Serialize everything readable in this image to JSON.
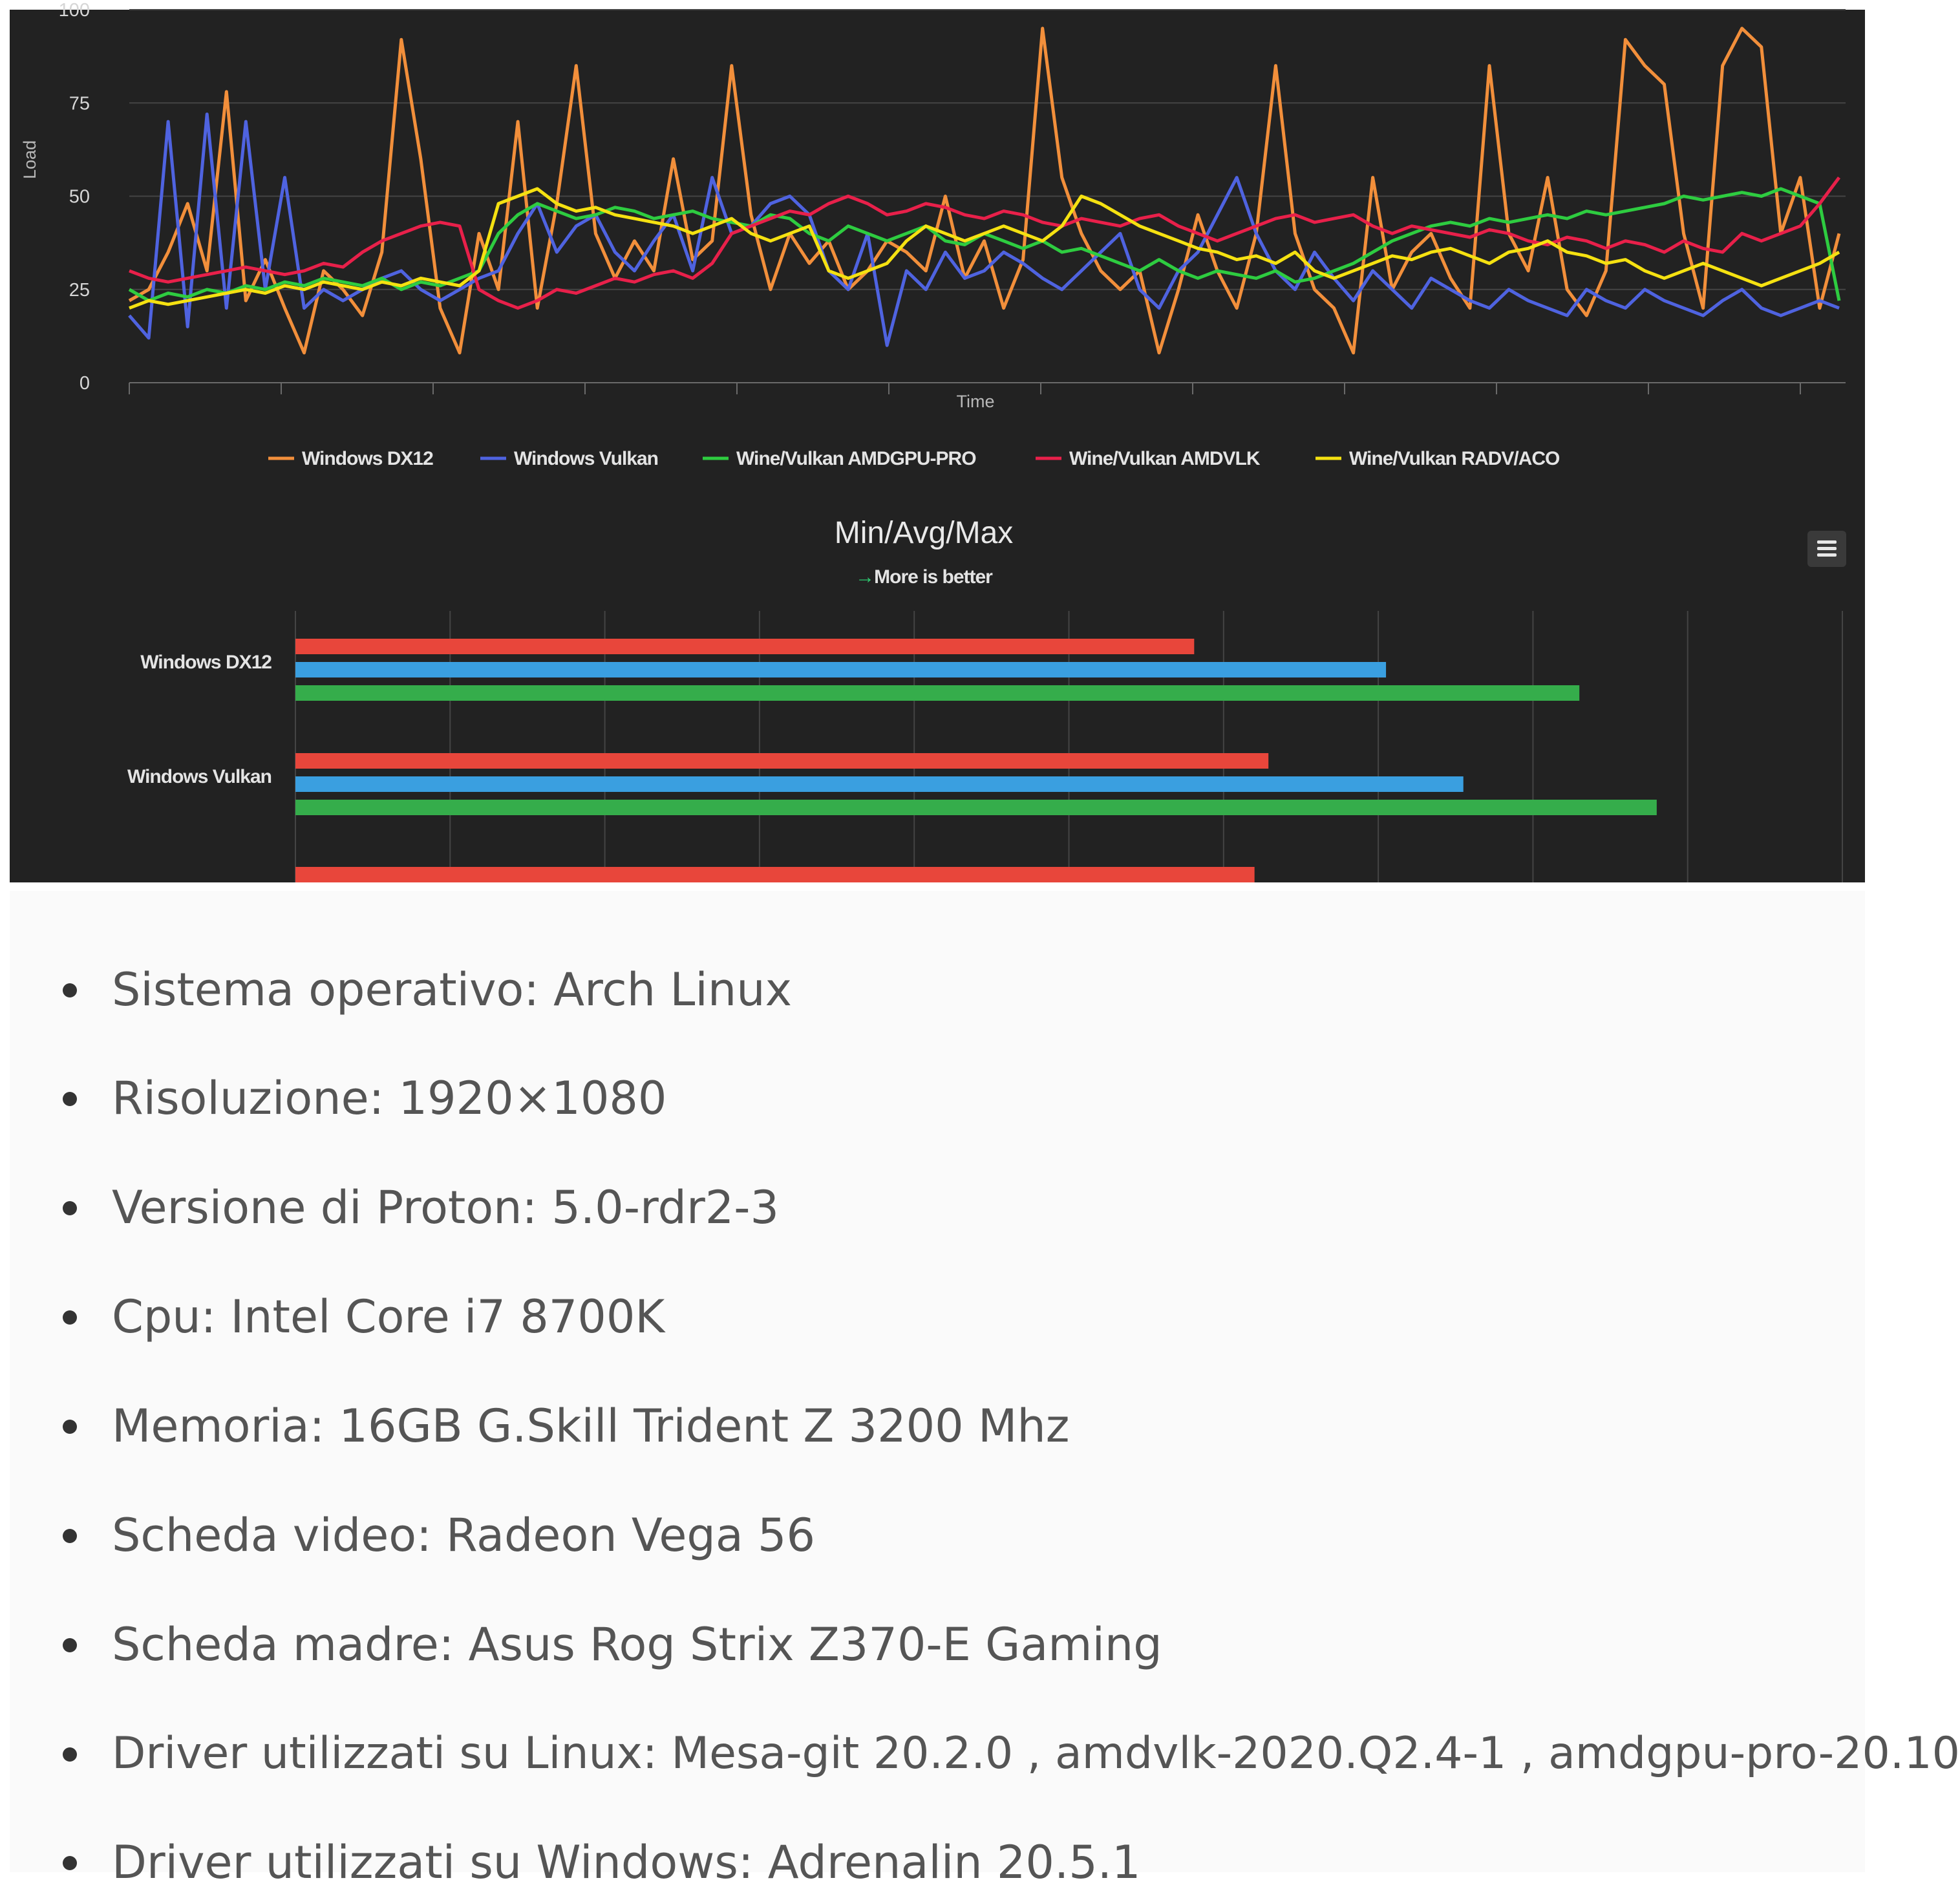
{
  "chart_data": [
    {
      "type": "line",
      "title": "",
      "xlabel": "Time",
      "ylabel": "Load",
      "ylim": [
        0,
        100
      ],
      "yticks": [
        "0",
        "25",
        "50",
        "75",
        "100"
      ],
      "legend": "bottom",
      "series": [
        {
          "name": "Windows DX12",
          "color": "#f28f3b",
          "values": [
            22,
            25,
            35,
            48,
            30,
            78,
            22,
            33,
            20,
            8,
            30,
            25,
            18,
            35,
            92,
            60,
            20,
            8,
            40,
            25,
            70,
            20,
            48,
            85,
            40,
            28,
            38,
            30,
            60,
            33,
            38,
            85,
            45,
            25,
            40,
            32,
            38,
            25,
            30,
            38,
            35,
            30,
            50,
            28,
            38,
            20,
            33,
            95,
            55,
            40,
            30,
            25,
            30,
            8,
            25,
            45,
            30,
            20,
            40,
            85,
            40,
            25,
            20,
            8,
            55,
            25,
            35,
            40,
            28,
            20,
            85,
            40,
            30,
            55,
            25,
            18,
            30,
            92,
            85,
            80,
            40,
            20,
            85,
            95,
            90,
            40,
            55,
            20,
            40
          ]
        },
        {
          "name": "Windows Vulkan",
          "color": "#4f63e0",
          "values": [
            18,
            12,
            70,
            15,
            72,
            20,
            70,
            25,
            55,
            20,
            25,
            22,
            25,
            28,
            30,
            25,
            22,
            25,
            28,
            30,
            40,
            48,
            35,
            42,
            45,
            35,
            30,
            38,
            45,
            30,
            55,
            40,
            42,
            48,
            50,
            45,
            30,
            25,
            40,
            10,
            30,
            25,
            35,
            28,
            30,
            35,
            32,
            28,
            25,
            30,
            35,
            40,
            25,
            20,
            30,
            35,
            45,
            55,
            40,
            30,
            25,
            35,
            28,
            22,
            30,
            25,
            20,
            28,
            25,
            22,
            20,
            25,
            22,
            20,
            18,
            25,
            22,
            20,
            25,
            22,
            20,
            18,
            22,
            25,
            20,
            18,
            20,
            22,
            20
          ]
        },
        {
          "name": "Wine/Vulkan AMDGPU-PRO",
          "color": "#2ecc40",
          "values": [
            25,
            22,
            24,
            23,
            25,
            24,
            26,
            25,
            27,
            26,
            28,
            27,
            26,
            28,
            25,
            27,
            26,
            28,
            30,
            40,
            45,
            48,
            46,
            44,
            45,
            47,
            46,
            44,
            45,
            46,
            44,
            43,
            42,
            45,
            44,
            40,
            38,
            42,
            40,
            38,
            40,
            42,
            38,
            37,
            40,
            38,
            36,
            38,
            35,
            36,
            34,
            32,
            30,
            33,
            30,
            28,
            30,
            29,
            28,
            30,
            27,
            28,
            30,
            32,
            35,
            38,
            40,
            42,
            43,
            42,
            44,
            43,
            44,
            45,
            44,
            46,
            45,
            46,
            47,
            48,
            50,
            49,
            50,
            51,
            50,
            52,
            50,
            48,
            22
          ]
        },
        {
          "name": "Wine/Vulkan AMDVLK",
          "color": "#e8204a",
          "values": [
            30,
            28,
            27,
            28,
            29,
            30,
            31,
            30,
            29,
            30,
            32,
            31,
            35,
            38,
            40,
            42,
            43,
            42,
            25,
            22,
            20,
            22,
            25,
            24,
            26,
            28,
            27,
            29,
            30,
            28,
            32,
            40,
            42,
            44,
            46,
            45,
            48,
            50,
            48,
            45,
            46,
            48,
            47,
            45,
            44,
            46,
            45,
            43,
            42,
            44,
            43,
            42,
            44,
            45,
            42,
            40,
            38,
            40,
            42,
            44,
            45,
            43,
            44,
            45,
            42,
            40,
            42,
            41,
            40,
            39,
            41,
            40,
            38,
            37,
            39,
            38,
            36,
            38,
            37,
            35,
            38,
            36,
            35,
            40,
            38,
            40,
            42,
            48,
            55
          ]
        },
        {
          "name": "Wine/Vulkan RADV/ACO",
          "color": "#f5e111",
          "values": [
            20,
            22,
            21,
            22,
            23,
            24,
            25,
            24,
            26,
            25,
            27,
            26,
            25,
            27,
            26,
            28,
            27,
            26,
            30,
            48,
            50,
            52,
            48,
            46,
            47,
            45,
            44,
            43,
            42,
            40,
            42,
            44,
            40,
            38,
            40,
            42,
            30,
            28,
            30,
            32,
            38,
            42,
            40,
            38,
            40,
            42,
            40,
            38,
            42,
            50,
            48,
            45,
            42,
            40,
            38,
            36,
            35,
            33,
            34,
            32,
            35,
            30,
            28,
            30,
            32,
            34,
            33,
            35,
            36,
            34,
            32,
            35,
            36,
            38,
            35,
            34,
            32,
            33,
            30,
            28,
            30,
            32,
            30,
            28,
            26,
            28,
            30,
            32,
            35
          ]
        }
      ]
    },
    {
      "type": "bar",
      "title": "Min/Avg/Max",
      "subtitle_arrow": "→",
      "subtitle": "More is better",
      "orientation": "horizontal",
      "categories": [
        "Windows DX12",
        "Windows Vulkan",
        ""
      ],
      "xlim": [
        0,
        100
      ],
      "series": [
        {
          "name": "Min",
          "color": "#e8463b",
          "values": [
            58.1,
            62.9,
            62.0
          ]
        },
        {
          "name": "Avg",
          "color": "#3a9fe0",
          "values": [
            70.5,
            75.5,
            null
          ]
        },
        {
          "name": "Max",
          "color": "#35ad4b",
          "values": [
            83.0,
            88.0,
            null
          ]
        }
      ]
    }
  ],
  "menu": {
    "icon": "hamburger-icon"
  },
  "specs": [
    "Sistema operativo: Arch Linux",
    "Risoluzione: 1920×1080",
    "Versione di Proton: 5.0-rdr2-3",
    "Cpu: Intel Core i7 8700K",
    "Memoria: 16GB G.Skill Trident Z 3200 Mhz",
    "Scheda video: Radeon Vega 56",
    "Scheda madre: Asus Rog Strix Z370-E Gaming",
    "Driver utilizzati su Linux: Mesa-git 20.2.0 , amdvlk-2020.Q2.4-1 , amdgpu-pro-20.10",
    "Driver utilizzati su Windows: Adrenalin 20.5.1"
  ]
}
